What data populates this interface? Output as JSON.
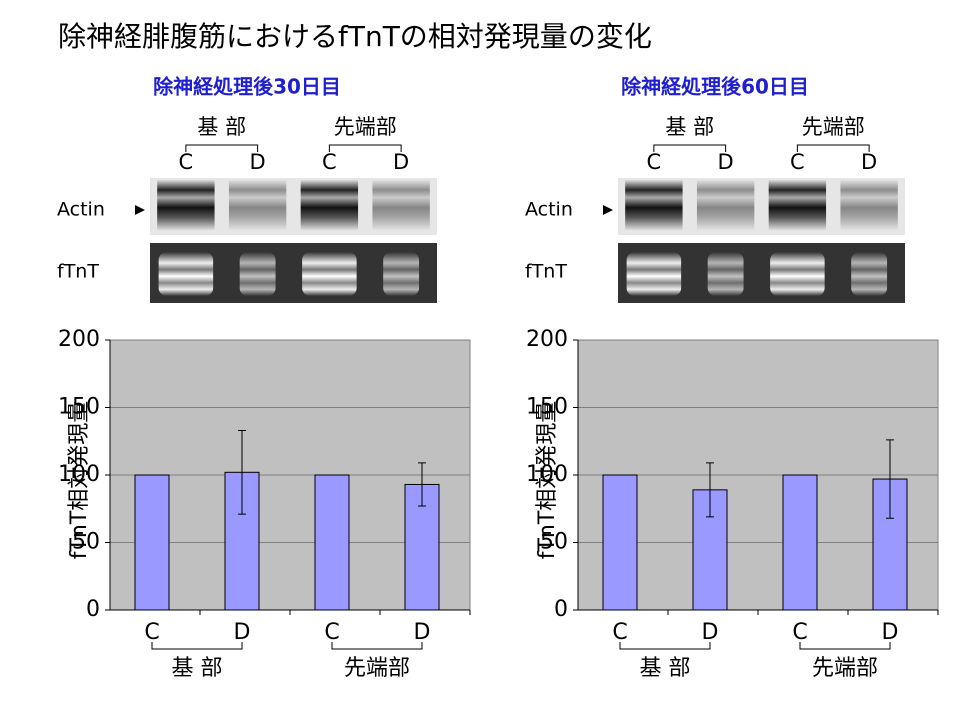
{
  "title": "除神経腓腹筋におけるfTnTの相対発現量の変化",
  "chart_data": [
    {
      "type": "bar",
      "title": "除神経処理後30日目",
      "y_label": "fTnT相対発現量",
      "blot_rows": [
        "Actin",
        "fTnT"
      ],
      "blot_lanes": [
        "C",
        "D",
        "C",
        "D"
      ],
      "blot_groups": [
        "基 部",
        "先端部"
      ],
      "categories": [
        "C",
        "D",
        "C",
        "D"
      ],
      "groups": [
        "基 部",
        "先端部"
      ],
      "values": [
        100,
        102,
        100,
        93
      ],
      "errors": [
        0,
        31,
        0,
        16
      ],
      "color": "#9999ff",
      "ylim": [
        0,
        200
      ],
      "yticks": [
        0,
        50,
        100,
        150,
        200
      ],
      "grid": true
    },
    {
      "type": "bar",
      "title": "除神経処理後60日目",
      "y_label": "fTnT相対発現量",
      "blot_rows": [
        "Actin",
        "fTnT"
      ],
      "blot_lanes": [
        "C",
        "D",
        "C",
        "D"
      ],
      "blot_groups": [
        "基 部",
        "先端部"
      ],
      "categories": [
        "C",
        "D",
        "C",
        "D"
      ],
      "groups": [
        "基 部",
        "先端部"
      ],
      "values": [
        100,
        89,
        100,
        97
      ],
      "errors": [
        0,
        20,
        0,
        29
      ],
      "color": "#9999ff",
      "ylim": [
        0,
        200
      ],
      "yticks": [
        0,
        50,
        100,
        150,
        200
      ],
      "grid": true
    }
  ]
}
